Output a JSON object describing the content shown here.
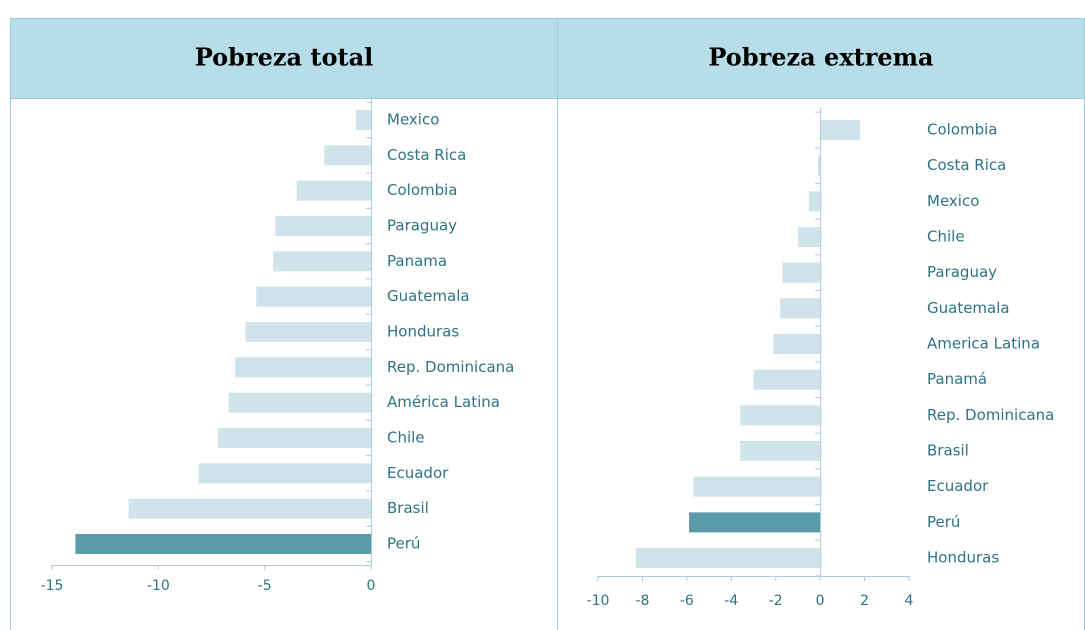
{
  "chart_data": [
    {
      "type": "bar",
      "title": "Pobreza total",
      "categories": [
        "Mexico",
        "Costa Rica",
        "Colombia",
        "Paraguay",
        "Panama",
        "Guatemala",
        "Honduras",
        "Rep. Dominicana",
        "América Latina",
        "Chile",
        "Ecuador",
        "Brasil",
        "Perú"
      ],
      "values": [
        -0.7,
        -2.2,
        -3.5,
        -4.5,
        -4.6,
        -5.4,
        -5.9,
        -6.4,
        -6.7,
        -7.2,
        -8.1,
        -11.4,
        -13.9
      ],
      "colors": [
        "#cfe3ea",
        "#cfe3ea",
        "#cfe3ea",
        "#cfe3ea",
        "#cfe3ea",
        "#cfe3ea",
        "#cfe3ea",
        "#cfe3ea",
        "#cfe3ea",
        "#cfe3ea",
        "#cfe3ea",
        "#cfe3ea",
        "#5b9aa8"
      ],
      "xlim": [
        -15,
        0
      ],
      "xticks": [
        -15,
        -10,
        -5,
        0
      ]
    },
    {
      "type": "bar",
      "title": "Pobreza extrema",
      "categories": [
        "Colombia",
        "Costa Rica",
        "Mexico",
        "Chile",
        "Paraguay",
        "Guatemala",
        "America Latina",
        "Panamá",
        "Rep. Dominicana",
        "Brasil",
        "Ecuador",
        "Perú",
        "Honduras"
      ],
      "values": [
        1.8,
        -0.1,
        -0.5,
        -1.0,
        -1.7,
        -1.8,
        -2.1,
        -3.0,
        -3.6,
        -3.6,
        -5.7,
        -5.9,
        -8.3
      ],
      "colors": [
        "#cfe3ea",
        "#cfe3ea",
        "#cfe3ea",
        "#cfe3ea",
        "#cfe3ea",
        "#cfe3ea",
        "#cfe3ea",
        "#cfe3ea",
        "#cfe3ea",
        "#cfe3ea",
        "#cfe3ea",
        "#5b9aa8",
        "#cfe3ea"
      ],
      "xlim": [
        -10,
        4
      ],
      "xticks": [
        -10,
        -8,
        -6,
        -4,
        -2,
        0,
        2,
        4
      ]
    }
  ]
}
